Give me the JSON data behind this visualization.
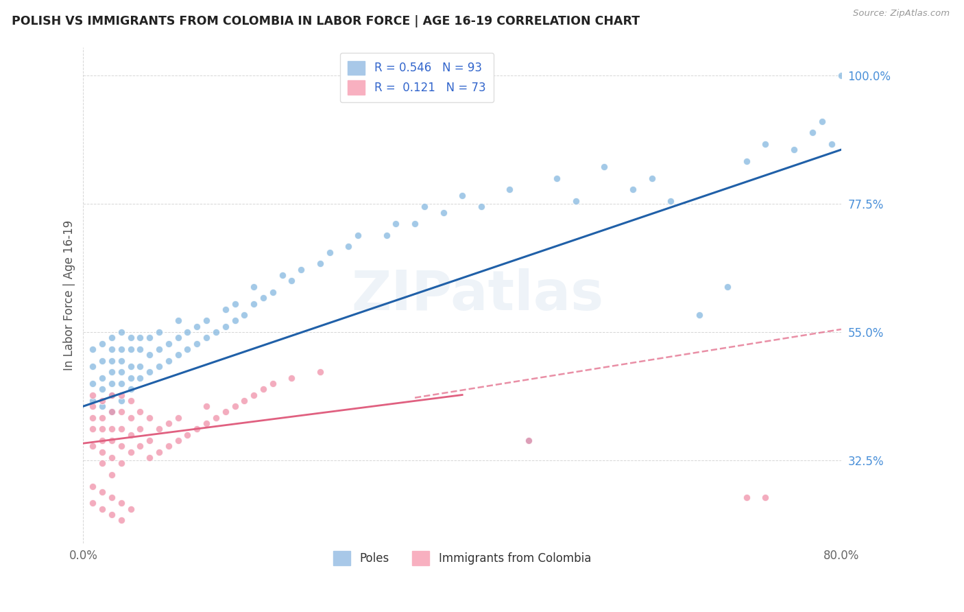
{
  "title": "POLISH VS IMMIGRANTS FROM COLOMBIA IN LABOR FORCE | AGE 16-19 CORRELATION CHART",
  "source": "Source: ZipAtlas.com",
  "ylabel": "In Labor Force | Age 16-19",
  "xlim": [
    0.0,
    0.8
  ],
  "ylim": [
    0.18,
    1.05
  ],
  "ytick_positions": [
    0.325,
    0.55,
    0.775,
    1.0
  ],
  "ytick_labels": [
    "32.5%",
    "55.0%",
    "77.5%",
    "100.0%"
  ],
  "blue_dot_color": "#85b8e0",
  "pink_dot_color": "#f090a8",
  "blue_line_color": "#2060a8",
  "pink_line_color": "#e06080",
  "watermark": "ZIPatlas",
  "blue_scatter_x": [
    0.01,
    0.01,
    0.01,
    0.01,
    0.02,
    0.02,
    0.02,
    0.02,
    0.02,
    0.03,
    0.03,
    0.03,
    0.03,
    0.03,
    0.03,
    0.03,
    0.04,
    0.04,
    0.04,
    0.04,
    0.04,
    0.04,
    0.05,
    0.05,
    0.05,
    0.05,
    0.05,
    0.06,
    0.06,
    0.06,
    0.06,
    0.07,
    0.07,
    0.07,
    0.08,
    0.08,
    0.08,
    0.09,
    0.09,
    0.1,
    0.1,
    0.1,
    0.11,
    0.11,
    0.12,
    0.12,
    0.13,
    0.13,
    0.14,
    0.15,
    0.15,
    0.16,
    0.16,
    0.17,
    0.18,
    0.18,
    0.19,
    0.2,
    0.21,
    0.22,
    0.23,
    0.25,
    0.26,
    0.28,
    0.29,
    0.32,
    0.33,
    0.35,
    0.36,
    0.38,
    0.4,
    0.42,
    0.45,
    0.47,
    0.5,
    0.52,
    0.55,
    0.58,
    0.6,
    0.62,
    0.65,
    0.68,
    0.7,
    0.72,
    0.75,
    0.77,
    0.78,
    0.79,
    0.8
  ],
  "blue_scatter_y": [
    0.43,
    0.46,
    0.49,
    0.52,
    0.42,
    0.45,
    0.47,
    0.5,
    0.53,
    0.41,
    0.44,
    0.46,
    0.48,
    0.5,
    0.52,
    0.54,
    0.43,
    0.46,
    0.48,
    0.5,
    0.52,
    0.55,
    0.45,
    0.47,
    0.49,
    0.52,
    0.54,
    0.47,
    0.49,
    0.52,
    0.54,
    0.48,
    0.51,
    0.54,
    0.49,
    0.52,
    0.55,
    0.5,
    0.53,
    0.51,
    0.54,
    0.57,
    0.52,
    0.55,
    0.53,
    0.56,
    0.54,
    0.57,
    0.55,
    0.56,
    0.59,
    0.57,
    0.6,
    0.58,
    0.6,
    0.63,
    0.61,
    0.62,
    0.65,
    0.64,
    0.66,
    0.67,
    0.69,
    0.7,
    0.72,
    0.72,
    0.74,
    0.74,
    0.77,
    0.76,
    0.79,
    0.77,
    0.8,
    0.36,
    0.82,
    0.78,
    0.84,
    0.8,
    0.82,
    0.78,
    0.58,
    0.63,
    0.85,
    0.88,
    0.87,
    0.9,
    0.92,
    0.88,
    1.0
  ],
  "pink_scatter_x": [
    0.01,
    0.01,
    0.01,
    0.01,
    0.01,
    0.02,
    0.02,
    0.02,
    0.02,
    0.02,
    0.02,
    0.03,
    0.03,
    0.03,
    0.03,
    0.03,
    0.03,
    0.04,
    0.04,
    0.04,
    0.04,
    0.04,
    0.05,
    0.05,
    0.05,
    0.05,
    0.06,
    0.06,
    0.06,
    0.07,
    0.07,
    0.07,
    0.08,
    0.08,
    0.09,
    0.09,
    0.1,
    0.1,
    0.11,
    0.12,
    0.13,
    0.13,
    0.14,
    0.15,
    0.16,
    0.17,
    0.18,
    0.19,
    0.2,
    0.22,
    0.25,
    0.47,
    0.7,
    0.72
  ],
  "pink_scatter_y": [
    0.35,
    0.38,
    0.4,
    0.42,
    0.44,
    0.32,
    0.34,
    0.36,
    0.38,
    0.4,
    0.43,
    0.3,
    0.33,
    0.36,
    0.38,
    0.41,
    0.44,
    0.32,
    0.35,
    0.38,
    0.41,
    0.44,
    0.34,
    0.37,
    0.4,
    0.43,
    0.35,
    0.38,
    0.41,
    0.33,
    0.36,
    0.4,
    0.34,
    0.38,
    0.35,
    0.39,
    0.36,
    0.4,
    0.37,
    0.38,
    0.39,
    0.42,
    0.4,
    0.41,
    0.42,
    0.43,
    0.44,
    0.45,
    0.46,
    0.47,
    0.48,
    0.36,
    0.26,
    0.26
  ],
  "pink_extra_x": [
    0.01,
    0.01,
    0.02,
    0.02,
    0.03,
    0.03,
    0.04,
    0.04,
    0.05
  ],
  "pink_extra_y": [
    0.28,
    0.25,
    0.27,
    0.24,
    0.26,
    0.23,
    0.25,
    0.22,
    0.24
  ]
}
